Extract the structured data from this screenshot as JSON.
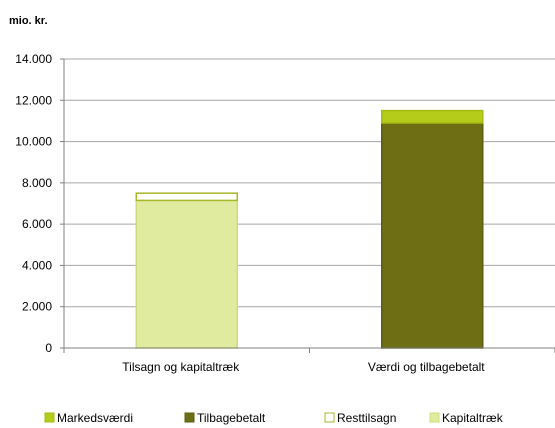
{
  "chart_data": {
    "type": "bar",
    "stacked": true,
    "y_unit_label": "mio. kr.",
    "xlabel": "",
    "ylabel": "",
    "ylim": [
      0,
      14000
    ],
    "y_ticks": [
      0,
      2000,
      4000,
      6000,
      8000,
      10000,
      12000,
      14000
    ],
    "y_tick_labels": [
      "0",
      "2.000",
      "4.000",
      "6.000",
      "8.000",
      "10.000",
      "12.000",
      "14.000"
    ],
    "grid": true,
    "legend_position": "bottom",
    "categories": [
      "Tilsagn og kapitaltræk",
      "Værdi og tilbagebetalt"
    ],
    "series": [
      {
        "name": "Kapitaltræk",
        "values": [
          7150,
          0
        ],
        "color": "#e0eb9f"
      },
      {
        "name": "Resttilsagn",
        "values": [
          350,
          0
        ],
        "color": "#ffffff"
      },
      {
        "name": "Tilbagebetalt",
        "values": [
          0,
          10900
        ],
        "color": "#6e6e14"
      },
      {
        "name": "Markedsværdi",
        "values": [
          0,
          600
        ],
        "color": "#b5cc1a"
      }
    ],
    "legend_order": [
      "Markedsværdi",
      "Tilbagebetalt",
      "Resttilsagn",
      "Kapitaltræk"
    ]
  }
}
